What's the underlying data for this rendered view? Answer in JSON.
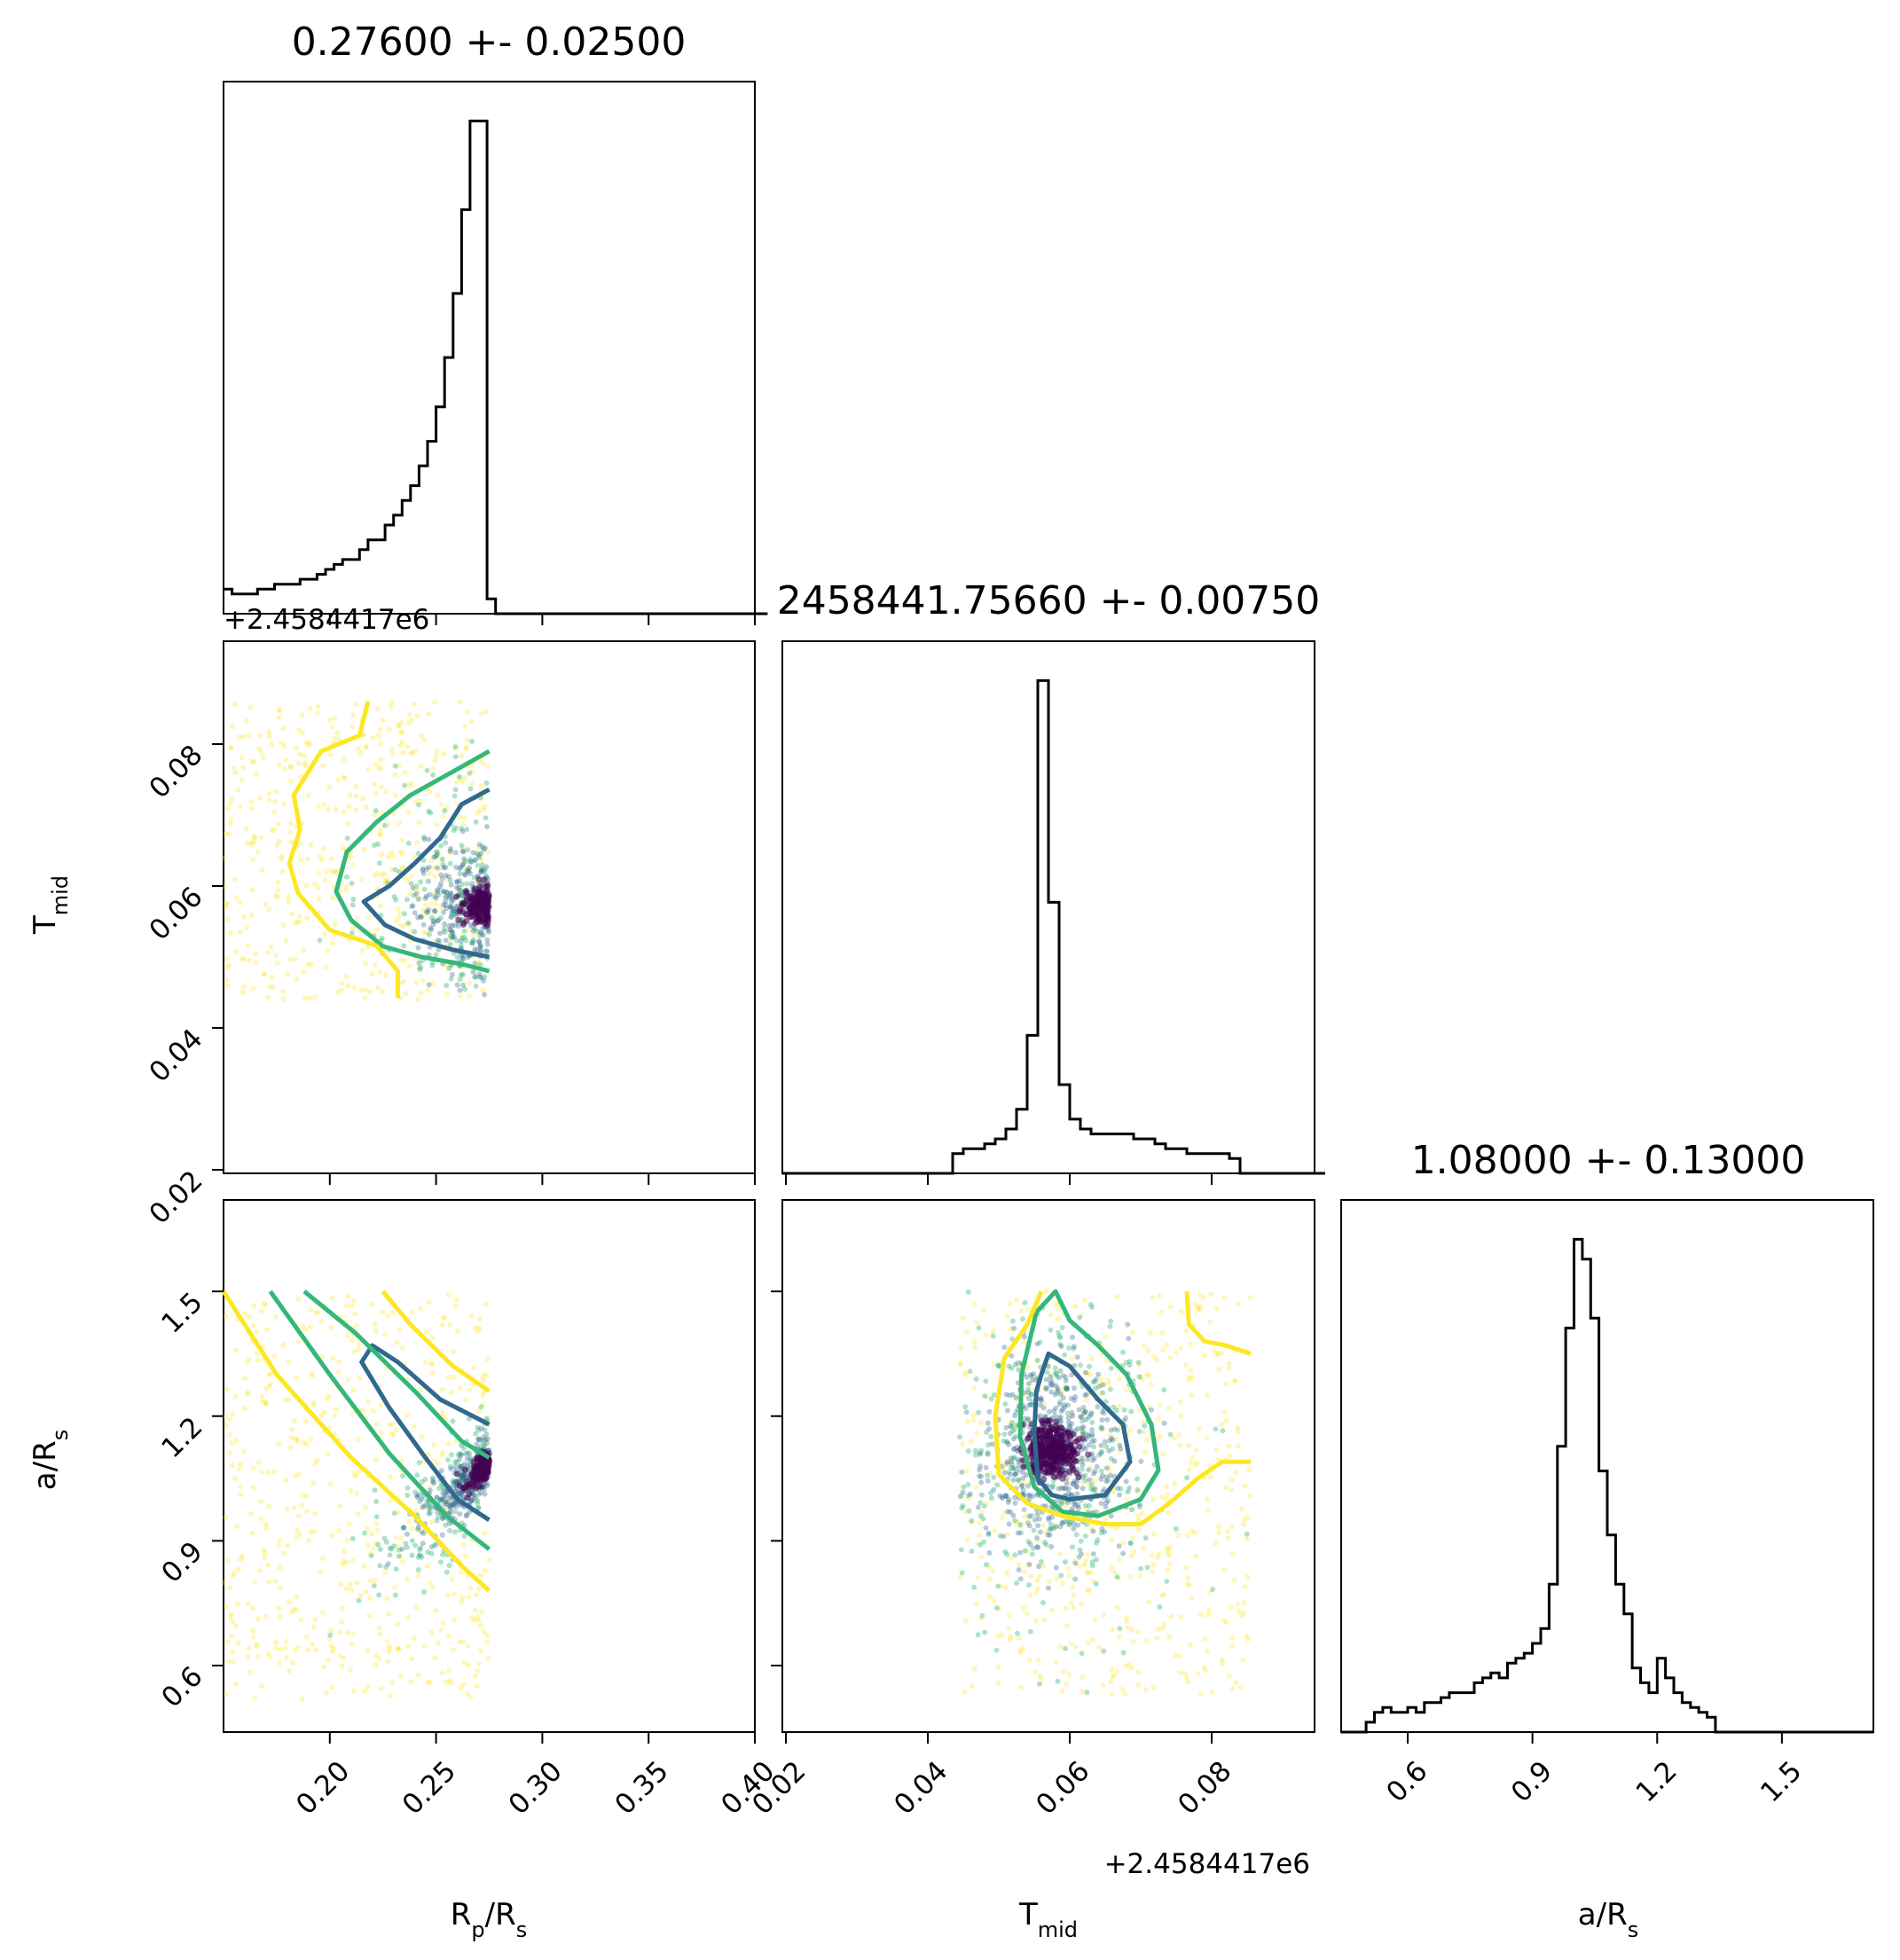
{
  "chart_data": {
    "type": "corner",
    "parameters": [
      {
        "key": "rp",
        "label_main": "R",
        "label_sub1": "p",
        "label_mid": "/R",
        "label_sub2": "s",
        "range": [
          0.15,
          0.4
        ],
        "ticks": [
          0.2,
          0.25,
          0.3,
          0.35,
          0.4
        ],
        "tick_labels": [
          "0.20",
          "0.25",
          "0.30",
          "0.35",
          "0.40"
        ]
      },
      {
        "key": "tmid",
        "label_main": "T",
        "label_sub1": "mid",
        "label_mid": "",
        "label_sub2": "",
        "range": [
          0.0195,
          0.0945
        ],
        "ticks": [
          0.02,
          0.04,
          0.06,
          0.08
        ],
        "tick_labels": [
          "0.02",
          "0.04",
          "0.06",
          "0.08"
        ],
        "offset_text": "+2.4584417e6"
      },
      {
        "key": "ars",
        "label_main": "a/R",
        "label_sub1": "",
        "label_mid": "",
        "label_sub2": "s",
        "range": [
          0.44,
          1.72
        ],
        "ticks": [
          0.6,
          0.9,
          1.2,
          1.5
        ],
        "tick_labels": [
          "0.6",
          "0.9",
          "1.2",
          "1.5"
        ]
      }
    ],
    "titles": [
      "0.27600 +- 0.02500",
      "2458441.75660 +- 0.00750",
      "1.08000 +- 0.13000"
    ],
    "histograms": [
      {
        "param": "rp",
        "bin_start": 0.15,
        "bin_width": 0.004,
        "counts": [
          5,
          4,
          4,
          4,
          5,
          5,
          6,
          6,
          6,
          7,
          7,
          8,
          9,
          10,
          11,
          11,
          13,
          15,
          15,
          18,
          20,
          23,
          26,
          30,
          35,
          42,
          52,
          65,
          82,
          100,
          100,
          3,
          0,
          0,
          0,
          0,
          0,
          0,
          0,
          0,
          0,
          0,
          0,
          0,
          0,
          0,
          0,
          0,
          0,
          0,
          0,
          0,
          0,
          0,
          0,
          0,
          0,
          0,
          0,
          0,
          0,
          0,
          0,
          0
        ]
      },
      {
        "param": "tmid",
        "bin_start": 0.0195,
        "bin_width": 0.0015,
        "counts": [
          0,
          0,
          0,
          0,
          0,
          0,
          0,
          0,
          0,
          0,
          0,
          0,
          0,
          0,
          0,
          0,
          4,
          5,
          5,
          6,
          7,
          9,
          13,
          28,
          100,
          55,
          18,
          11,
          9,
          8,
          8,
          8,
          8,
          7,
          7,
          6,
          5,
          5,
          4,
          4,
          4,
          4,
          3,
          0,
          0,
          0,
          0,
          0,
          0,
          0,
          0
        ]
      },
      {
        "param": "ars",
        "bin_start": 0.44,
        "bin_width": 0.02,
        "counts": [
          0,
          0,
          0,
          2,
          4,
          5,
          4,
          4,
          5,
          4,
          6,
          6,
          7,
          8,
          8,
          8,
          10,
          11,
          12,
          11,
          14,
          15,
          16,
          18,
          21,
          30,
          58,
          82,
          100,
          96,
          84,
          53,
          40,
          30,
          24,
          13,
          10,
          8,
          15,
          11,
          8,
          6,
          5,
          4,
          3,
          0,
          0,
          0,
          0,
          0,
          0,
          0,
          0,
          0,
          0,
          0,
          0,
          0,
          0,
          0,
          0,
          0,
          0,
          0
        ]
      }
    ],
    "pair_panels": [
      {
        "x": "rp",
        "y": "tmid",
        "scatter_x_range": [
          0.15,
          0.275
        ],
        "scatter_y_range": [
          0.044,
          0.086
        ],
        "mode": [
          0.275,
          0.0573
        ],
        "contours": [
          {
            "level": "inner",
            "color": "#31688e",
            "points": [
              [
                0.275,
                0.0736
              ],
              [
                0.262,
                0.0715
              ],
              [
                0.252,
                0.0668
              ],
              [
                0.24,
                0.0632
              ],
              [
                0.228,
                0.06
              ],
              [
                0.216,
                0.0578
              ],
              [
                0.226,
                0.0545
              ],
              [
                0.24,
                0.0525
              ],
              [
                0.258,
                0.051
              ],
              [
                0.275,
                0.05
              ]
            ]
          },
          {
            "level": "middle",
            "color": "#35b779",
            "points": [
              [
                0.275,
                0.079
              ],
              [
                0.262,
                0.0768
              ],
              [
                0.238,
                0.0728
              ],
              [
                0.222,
                0.069
              ],
              [
                0.208,
                0.0648
              ],
              [
                0.203,
                0.0592
              ],
              [
                0.21,
                0.0552
              ],
              [
                0.225,
                0.0515
              ],
              [
                0.243,
                0.05
              ],
              [
                0.262,
                0.049
              ],
              [
                0.275,
                0.048
              ]
            ]
          },
          {
            "level": "outer",
            "color": "#fde725",
            "points": [
              [
                0.218,
                0.086
              ],
              [
                0.214,
                0.0812
              ],
              [
                0.196,
                0.079
              ],
              [
                0.183,
                0.0728
              ],
              [
                0.186,
                0.068
              ],
              [
                0.181,
                0.0632
              ],
              [
                0.185,
                0.059
              ],
              [
                0.2,
                0.0538
              ],
              [
                0.222,
                0.0516
              ],
              [
                0.232,
                0.048
              ],
              [
                0.232,
                0.0442
              ]
            ]
          }
        ]
      },
      {
        "x": "rp",
        "y": "ars",
        "scatter_x_range": [
          0.15,
          0.275
        ],
        "scatter_y_range": [
          0.52,
          1.5
        ],
        "mode": [
          0.275,
          1.09
        ],
        "contours": [
          {
            "level": "inner",
            "color": "#31688e",
            "points": [
              [
                0.275,
                1.18
              ],
              [
                0.252,
                1.24
              ],
              [
                0.232,
                1.33
              ],
              [
                0.22,
                1.37
              ],
              [
                0.215,
                1.33
              ],
              [
                0.228,
                1.22
              ],
              [
                0.245,
                1.1
              ],
              [
                0.26,
                1.0
              ],
              [
                0.275,
                0.95
              ]
            ]
          },
          {
            "level": "middle",
            "color": "#35b779",
            "points": [
              [
                0.188,
                1.5
              ],
              [
                0.212,
                1.4
              ],
              [
                0.24,
                1.26
              ],
              [
                0.262,
                1.14
              ],
              [
                0.275,
                1.1
              ]
            ]
          },
          {
            "level": "middle",
            "color": "#35b779",
            "points": [
              [
                0.172,
                1.5
              ],
              [
                0.2,
                1.3
              ],
              [
                0.228,
                1.11
              ],
              [
                0.255,
                0.96
              ],
              [
                0.275,
                0.88
              ]
            ]
          },
          {
            "level": "outer",
            "color": "#fde725",
            "points": [
              [
                0.225,
                1.5
              ],
              [
                0.238,
                1.42
              ],
              [
                0.258,
                1.32
              ],
              [
                0.275,
                1.26
              ]
            ]
          },
          {
            "level": "outer",
            "color": "#fde725",
            "points": [
              [
                0.15,
                1.5
              ],
              [
                0.175,
                1.3
              ],
              [
                0.21,
                1.1
              ],
              [
                0.24,
                0.96
              ],
              [
                0.262,
                0.84
              ],
              [
                0.275,
                0.78
              ]
            ]
          }
        ]
      },
      {
        "x": "tmid",
        "y": "ars",
        "scatter_x_range": [
          0.0445,
          0.0855
        ],
        "scatter_y_range": [
          0.52,
          1.5
        ],
        "mode": [
          0.0575,
          1.12
        ],
        "contours": [
          {
            "level": "inner",
            "color": "#31688e",
            "points": [
              [
                0.056,
                1.3
              ],
              [
                0.057,
                1.35
              ],
              [
                0.06,
                1.32
              ],
              [
                0.064,
                1.24
              ],
              [
                0.0675,
                1.18
              ],
              [
                0.0685,
                1.09
              ],
              [
                0.065,
                1.01
              ],
              [
                0.06,
                1.0
              ],
              [
                0.0575,
                1.01
              ],
              [
                0.0555,
                1.05
              ],
              [
                0.055,
                1.16
              ],
              [
                0.0553,
                1.26
              ],
              [
                0.056,
                1.3
              ]
            ]
          },
          {
            "level": "middle",
            "color": "#35b779",
            "points": [
              [
                0.0553,
                1.45
              ],
              [
                0.058,
                1.5
              ],
              [
                0.06,
                1.43
              ],
              [
                0.064,
                1.37
              ],
              [
                0.068,
                1.3
              ],
              [
                0.0715,
                1.18
              ],
              [
                0.0725,
                1.07
              ],
              [
                0.07,
                1.0
              ],
              [
                0.064,
                0.96
              ],
              [
                0.059,
                0.97
              ],
              [
                0.055,
                1.03
              ],
              [
                0.053,
                1.15
              ],
              [
                0.0532,
                1.3
              ],
              [
                0.0553,
                1.45
              ]
            ]
          },
          {
            "level": "outer",
            "color": "#fde725",
            "points": [
              [
                0.056,
                1.5
              ],
              [
                0.054,
                1.42
              ],
              [
                0.0508,
                1.34
              ],
              [
                0.0495,
                1.2
              ],
              [
                0.05,
                1.06
              ],
              [
                0.054,
                0.99
              ],
              [
                0.059,
                0.96
              ],
              [
                0.065,
                0.94
              ],
              [
                0.07,
                0.94
              ],
              [
                0.074,
                0.99
              ],
              [
                0.078,
                1.05
              ],
              [
                0.0815,
                1.09
              ],
              [
                0.0855,
                1.09
              ]
            ]
          },
          {
            "level": "outer",
            "color": "#fde725",
            "points": [
              [
                0.0765,
                1.5
              ],
              [
                0.0768,
                1.42
              ],
              [
                0.079,
                1.38
              ],
              [
                0.082,
                1.37
              ],
              [
                0.0855,
                1.35
              ]
            ]
          }
        ]
      }
    ],
    "point_colors": {
      "outer": "#fde725",
      "middle": "#35b779",
      "inner": "#31688e",
      "core": "#440154"
    }
  }
}
